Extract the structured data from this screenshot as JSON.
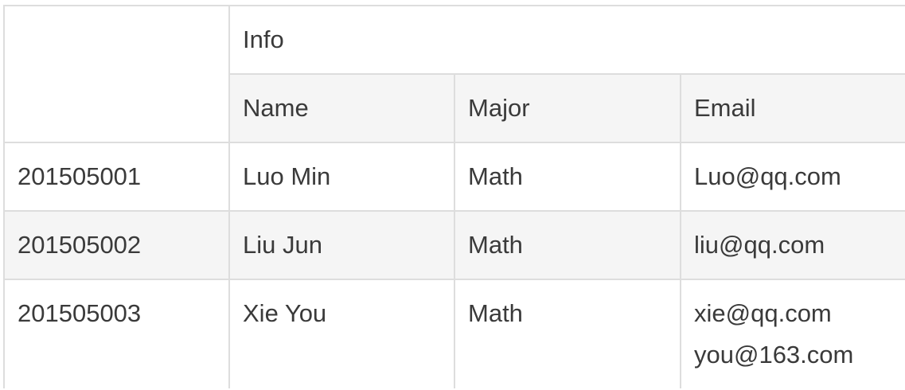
{
  "table": {
    "group_header": "Info",
    "columns": [
      "Name",
      "Major",
      "Email"
    ],
    "rows": [
      {
        "id": "201505001",
        "name": "Luo Min",
        "major": "Math",
        "emails": [
          "Luo@qq.com"
        ]
      },
      {
        "id": "201505002",
        "name": "Liu Jun",
        "major": "Math",
        "emails": [
          "liu@qq.com"
        ]
      },
      {
        "id": "201505003",
        "name": "Xie You",
        "major": "Math",
        "emails": [
          "xie@qq.com",
          "you@163.com"
        ]
      }
    ]
  },
  "colors": {
    "text": "#3a3a3a",
    "border": "#dddddd",
    "stripe": "#f5f5f5",
    "background": "#ffffff"
  }
}
